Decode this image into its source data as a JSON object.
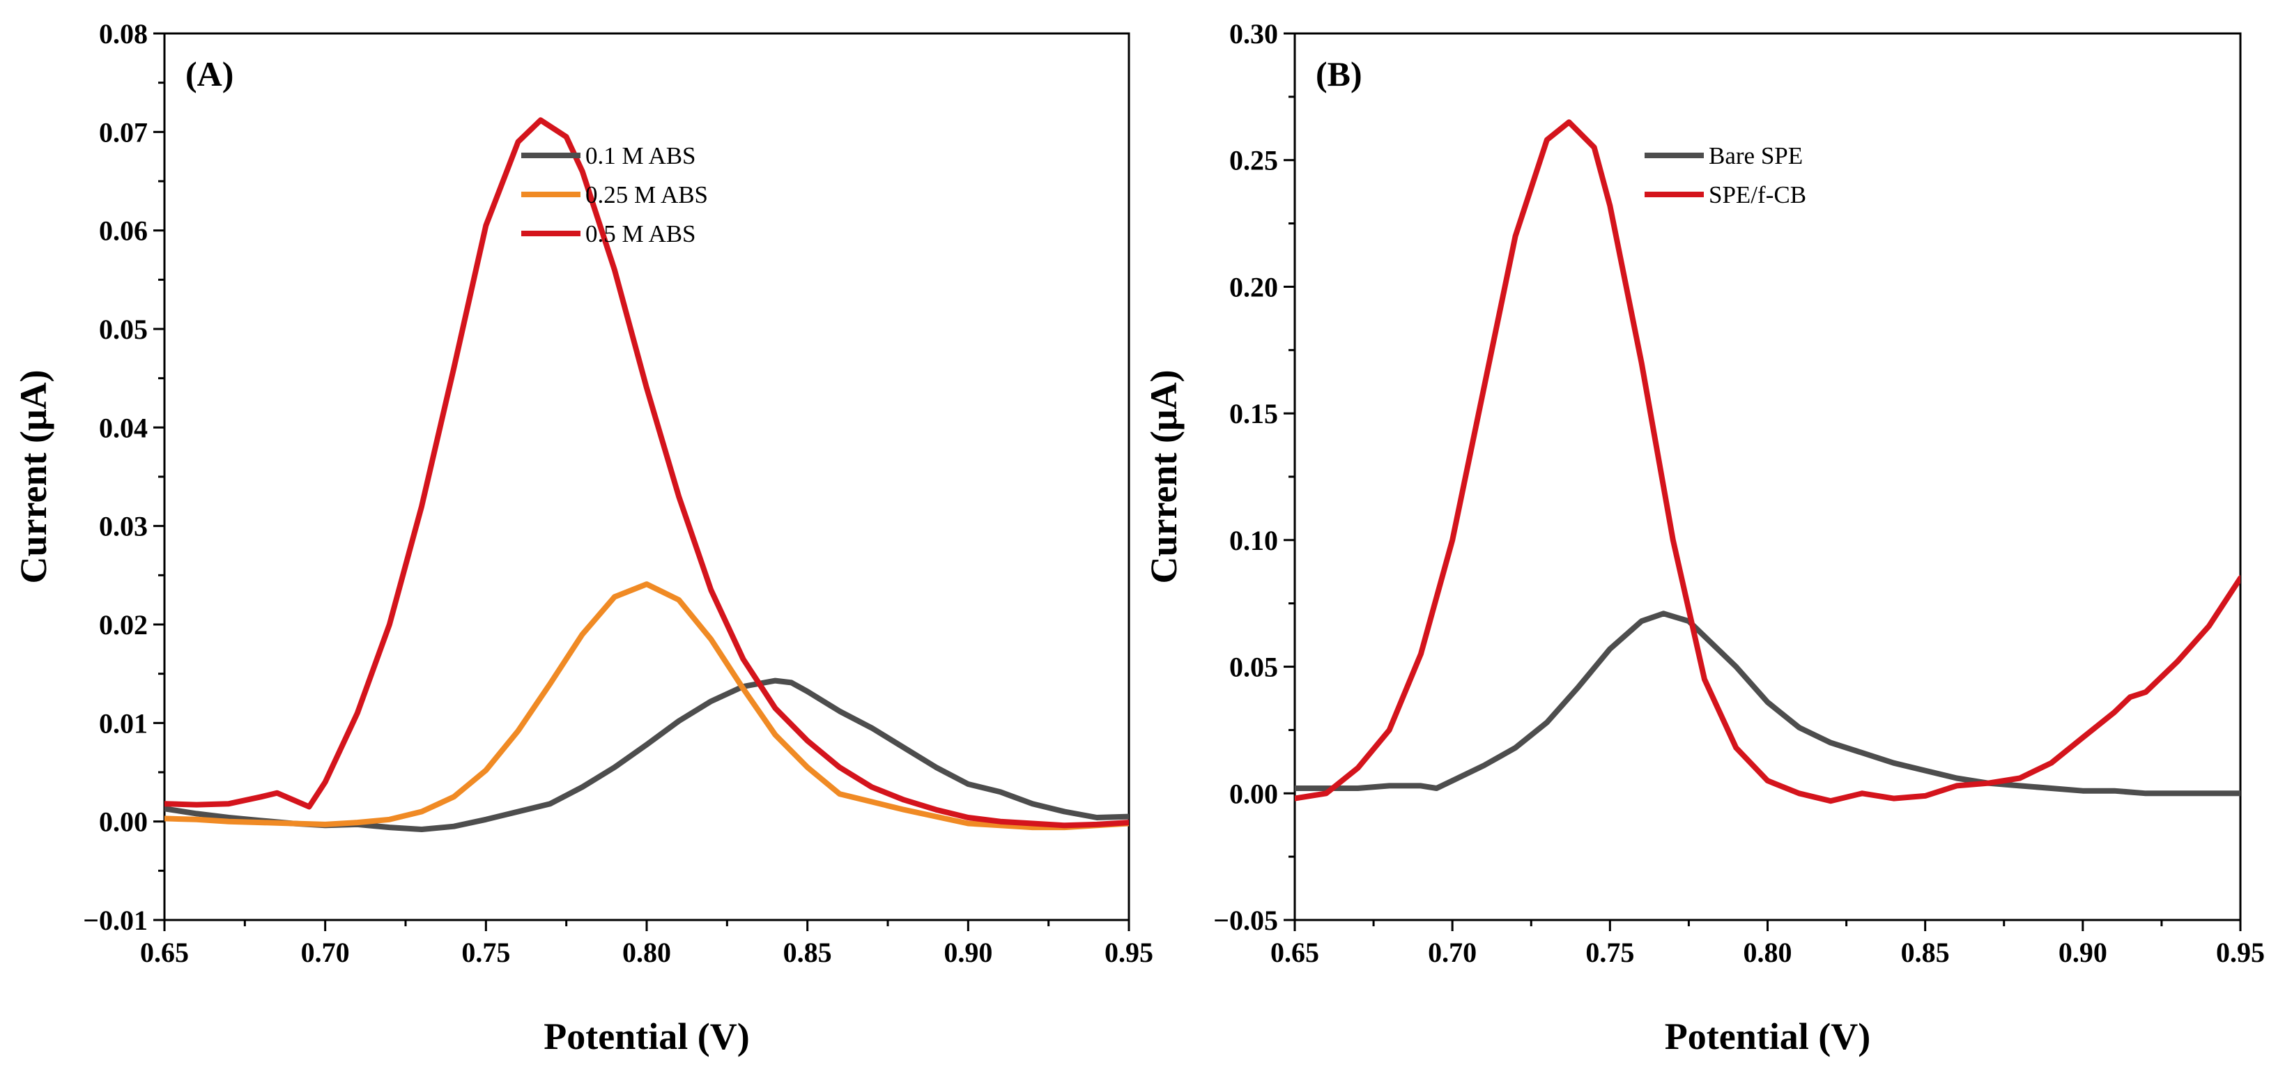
{
  "chart_data": [
    {
      "type": "line",
      "panel_label": "(A)",
      "xlabel": "Potential (V)",
      "ylabel": "Current (μA)",
      "xlim": [
        0.65,
        0.95
      ],
      "ylim": [
        -0.01,
        0.08
      ],
      "x_ticks": [
        0.65,
        0.7,
        0.75,
        0.8,
        0.85,
        0.9,
        0.95
      ],
      "x_tick_labels": [
        "0.65",
        "0.70",
        "0.75",
        "0.80",
        "0.85",
        "0.90",
        "0.95"
      ],
      "y_ticks": [
        -0.01,
        0.0,
        0.01,
        0.02,
        0.03,
        0.04,
        0.05,
        0.06,
        0.07,
        0.08
      ],
      "y_tick_labels": [
        "−0.01",
        "0.00",
        "0.01",
        "0.02",
        "0.03",
        "0.04",
        "0.05",
        "0.06",
        "0.07",
        "0.08"
      ],
      "legend_position": "top-center",
      "series": [
        {
          "name": "0.1 M ABS",
          "color": "#4d4d4d",
          "x": [
            0.65,
            0.66,
            0.67,
            0.68,
            0.69,
            0.7,
            0.71,
            0.72,
            0.73,
            0.74,
            0.75,
            0.76,
            0.77,
            0.78,
            0.79,
            0.8,
            0.81,
            0.82,
            0.83,
            0.84,
            0.845,
            0.85,
            0.86,
            0.87,
            0.88,
            0.89,
            0.9,
            0.91,
            0.92,
            0.93,
            0.94,
            0.95
          ],
          "y": [
            0.0013,
            0.0008,
            0.0004,
            0.0001,
            -0.0002,
            -0.0004,
            -0.0003,
            -0.0006,
            -0.0008,
            -0.0005,
            0.0002,
            0.001,
            0.0018,
            0.0035,
            0.0055,
            0.0078,
            0.0102,
            0.0122,
            0.0137,
            0.0143,
            0.0141,
            0.0132,
            0.0112,
            0.0095,
            0.0075,
            0.0055,
            0.0038,
            0.003,
            0.0018,
            0.001,
            0.0004,
            0.0005
          ]
        },
        {
          "name": "0.25 M ABS",
          "color": "#f08a24",
          "x": [
            0.65,
            0.66,
            0.67,
            0.68,
            0.69,
            0.7,
            0.71,
            0.72,
            0.73,
            0.74,
            0.75,
            0.76,
            0.77,
            0.78,
            0.79,
            0.8,
            0.81,
            0.82,
            0.83,
            0.84,
            0.85,
            0.86,
            0.87,
            0.88,
            0.89,
            0.9,
            0.91,
            0.92,
            0.93,
            0.94,
            0.95
          ],
          "y": [
            0.0003,
            0.0002,
            0.0,
            -0.0001,
            -0.0002,
            -0.0003,
            -0.0001,
            0.0002,
            0.001,
            0.0025,
            0.0052,
            0.0092,
            0.014,
            0.019,
            0.0228,
            0.0241,
            0.0225,
            0.0185,
            0.0135,
            0.0088,
            0.0055,
            0.0028,
            0.002,
            0.0012,
            0.0005,
            -0.0002,
            -0.0004,
            -0.0006,
            -0.0006,
            -0.0004,
            -0.0002
          ]
        },
        {
          "name": "0.5 M ABS",
          "color": "#d4141c",
          "x": [
            0.65,
            0.66,
            0.67,
            0.68,
            0.685,
            0.69,
            0.695,
            0.7,
            0.71,
            0.72,
            0.73,
            0.74,
            0.75,
            0.76,
            0.767,
            0.775,
            0.78,
            0.79,
            0.8,
            0.81,
            0.82,
            0.83,
            0.84,
            0.85,
            0.86,
            0.87,
            0.88,
            0.89,
            0.9,
            0.91,
            0.92,
            0.93,
            0.94,
            0.95
          ],
          "y": [
            0.0018,
            0.0017,
            0.0018,
            0.0025,
            0.0029,
            0.0022,
            0.0015,
            0.004,
            0.011,
            0.02,
            0.032,
            0.046,
            0.0605,
            0.069,
            0.0712,
            0.0695,
            0.066,
            0.056,
            0.044,
            0.033,
            0.0235,
            0.0165,
            0.0115,
            0.0082,
            0.0055,
            0.0035,
            0.0022,
            0.0012,
            0.0004,
            0.0,
            -0.0002,
            -0.0004,
            -0.0003,
            -0.0001
          ]
        }
      ]
    },
    {
      "type": "line",
      "panel_label": "(B)",
      "xlabel": "Potential (V)",
      "ylabel": "Current (μA)",
      "xlim": [
        0.65,
        0.95
      ],
      "ylim": [
        -0.05,
        0.3
      ],
      "x_ticks": [
        0.65,
        0.7,
        0.75,
        0.8,
        0.85,
        0.9,
        0.95
      ],
      "x_tick_labels": [
        "0.65",
        "0.70",
        "0.75",
        "0.80",
        "0.85",
        "0.90",
        "0.95"
      ],
      "y_ticks": [
        -0.05,
        0.0,
        0.05,
        0.1,
        0.15,
        0.2,
        0.25,
        0.3
      ],
      "y_tick_labels": [
        "−0.05",
        "0.00",
        "0.05",
        "0.10",
        "0.15",
        "0.20",
        "0.25",
        "0.30"
      ],
      "legend_position": "top-center",
      "series": [
        {
          "name": "Bare SPE",
          "color": "#4d4d4d",
          "x": [
            0.65,
            0.66,
            0.67,
            0.68,
            0.69,
            0.695,
            0.7,
            0.71,
            0.72,
            0.73,
            0.74,
            0.75,
            0.76,
            0.767,
            0.775,
            0.78,
            0.79,
            0.8,
            0.81,
            0.82,
            0.83,
            0.84,
            0.85,
            0.86,
            0.87,
            0.88,
            0.89,
            0.9,
            0.91,
            0.92,
            0.93,
            0.94,
            0.95
          ],
          "y": [
            0.002,
            0.002,
            0.002,
            0.003,
            0.003,
            0.002,
            0.005,
            0.011,
            0.018,
            0.028,
            0.042,
            0.057,
            0.068,
            0.071,
            0.068,
            0.062,
            0.05,
            0.036,
            0.026,
            0.02,
            0.016,
            0.012,
            0.009,
            0.006,
            0.004,
            0.003,
            0.002,
            0.001,
            0.001,
            0.0,
            0.0,
            0.0,
            0.0
          ]
        },
        {
          "name": "SPE/f-CB",
          "color": "#d4141c",
          "x": [
            0.65,
            0.66,
            0.67,
            0.68,
            0.69,
            0.7,
            0.71,
            0.72,
            0.73,
            0.737,
            0.745,
            0.75,
            0.76,
            0.77,
            0.78,
            0.79,
            0.8,
            0.81,
            0.82,
            0.83,
            0.84,
            0.85,
            0.86,
            0.87,
            0.88,
            0.89,
            0.9,
            0.91,
            0.915,
            0.92,
            0.93,
            0.94,
            0.95
          ],
          "y": [
            -0.002,
            0.0,
            0.01,
            0.025,
            0.055,
            0.1,
            0.16,
            0.22,
            0.258,
            0.265,
            0.255,
            0.232,
            0.17,
            0.1,
            0.045,
            0.018,
            0.005,
            0.0,
            -0.003,
            0.0,
            -0.002,
            -0.001,
            0.003,
            0.004,
            0.006,
            0.012,
            0.022,
            0.032,
            0.038,
            0.04,
            0.052,
            0.066,
            0.085
          ]
        }
      ]
    }
  ]
}
